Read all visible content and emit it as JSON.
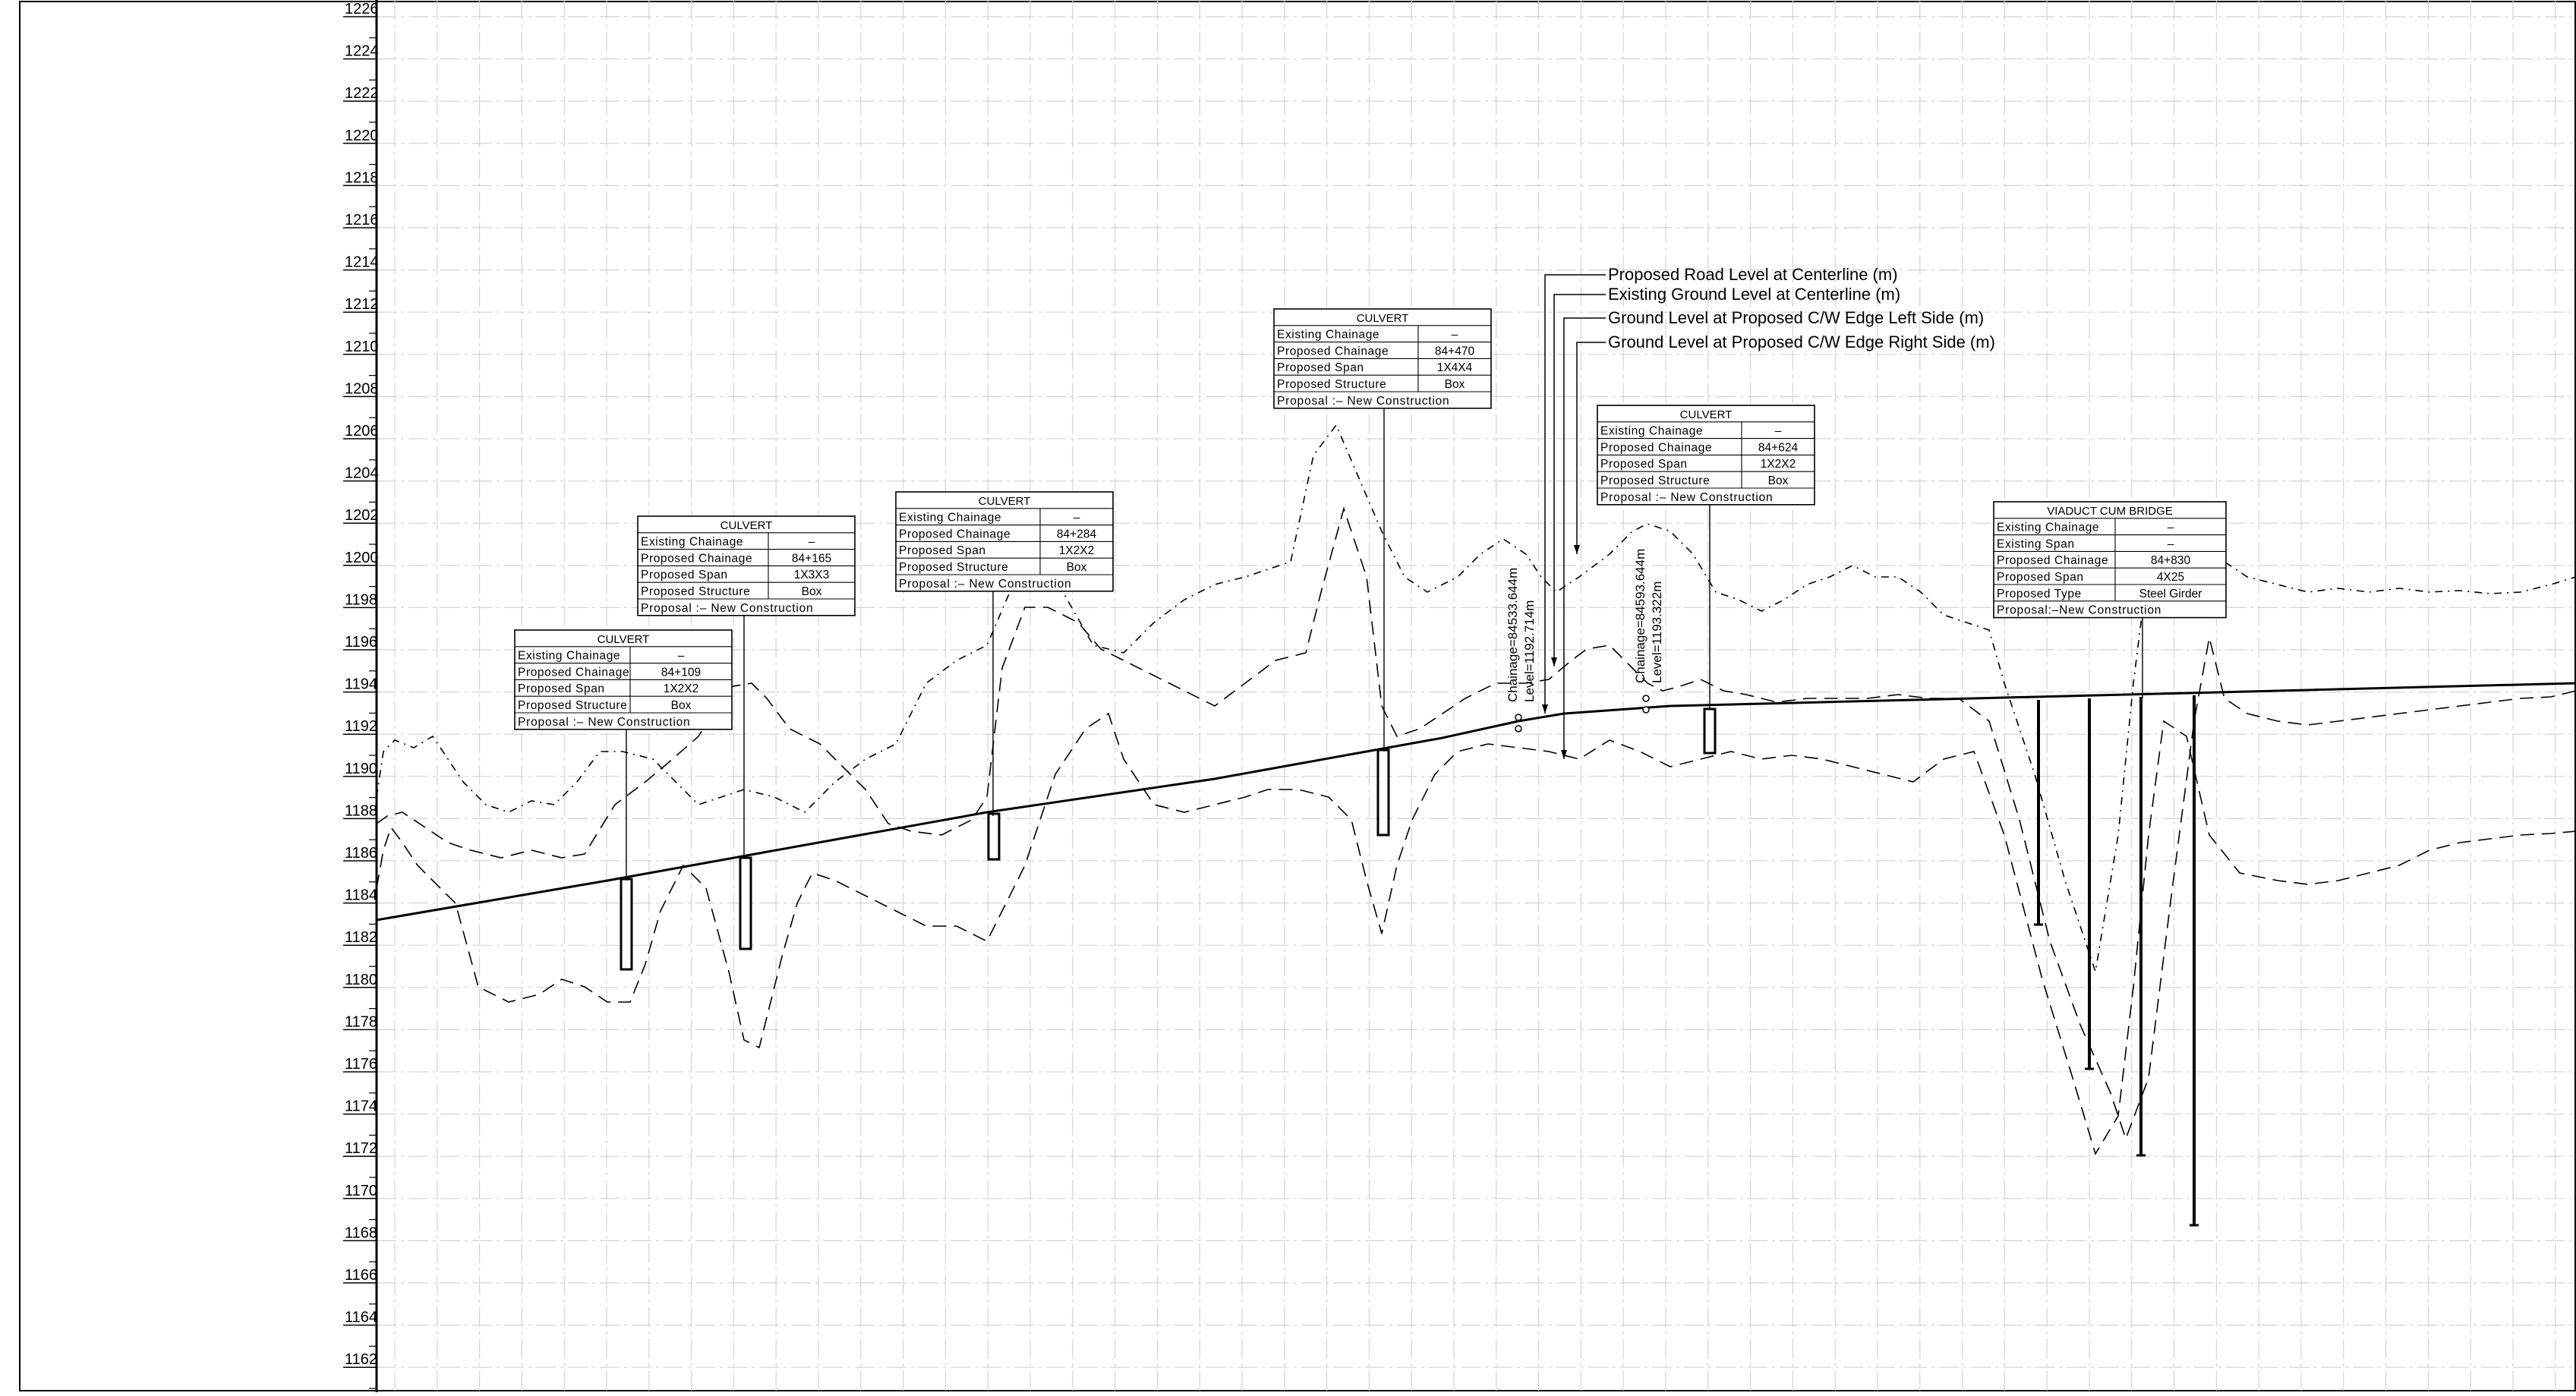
{
  "drawing": {
    "title": "",
    "y_axis_levels": [
      "1226",
      "1224",
      "1222",
      "1220",
      "1218",
      "1216",
      "1214",
      "1212",
      "1210",
      "1208",
      "1206",
      "1204",
      "1202",
      "1200",
      "1198",
      "1196",
      "1194",
      "1192",
      "1190",
      "1188",
      "1186",
      "1184",
      "1182",
      "1180",
      "1178",
      "1176",
      "1174",
      "1172",
      "1170",
      "1168",
      "1166",
      "1164",
      "1162"
    ],
    "legend": [
      "Proposed Road Level at Centerline (m)",
      "Existing Ground Level at Centerline (m)",
      "Ground Level at Proposed C/W Edge Left Side (m)",
      "Ground Level at Proposed C/W Edge Right Side (m)"
    ],
    "structures": [
      {
        "title": "CULVERT",
        "rows": [
          {
            "label": "Existing Chainage",
            "value": "–"
          },
          {
            "label": "Proposed Chainage",
            "value": "84+109"
          },
          {
            "label": "Proposed Span",
            "value": "1X2X2"
          },
          {
            "label": "Proposed Structure",
            "value": "Box"
          }
        ],
        "proposal": "Proposal :– New Construction"
      },
      {
        "title": "CULVERT",
        "rows": [
          {
            "label": "Existing Chainage",
            "value": "–"
          },
          {
            "label": "Proposed Chainage",
            "value": "84+165"
          },
          {
            "label": "Proposed Span",
            "value": "1X3X3"
          },
          {
            "label": "Proposed Structure",
            "value": "Box"
          }
        ],
        "proposal": "Proposal :– New Construction"
      },
      {
        "title": "CULVERT",
        "rows": [
          {
            "label": "Existing Chainage",
            "value": "–"
          },
          {
            "label": "Proposed Chainage",
            "value": "84+284"
          },
          {
            "label": "Proposed Span",
            "value": "1X2X2"
          },
          {
            "label": "Proposed Structure",
            "value": "Box"
          }
        ],
        "proposal": "Proposal :– New Construction"
      },
      {
        "title": "CULVERT",
        "rows": [
          {
            "label": "Existing Chainage",
            "value": "–"
          },
          {
            "label": "Proposed Chainage",
            "value": "84+470"
          },
          {
            "label": "Proposed Span",
            "value": "1X4X4"
          },
          {
            "label": "Proposed Structure",
            "value": "Box"
          }
        ],
        "proposal": "Proposal :– New Construction"
      },
      {
        "title": "CULVERT",
        "rows": [
          {
            "label": "Existing Chainage",
            "value": "–"
          },
          {
            "label": "Proposed Chainage",
            "value": "84+624"
          },
          {
            "label": "Proposed Span",
            "value": "1X2X2"
          },
          {
            "label": "Proposed Structure",
            "value": "Box"
          }
        ],
        "proposal": "Proposal :– New Construction"
      },
      {
        "title": "VIADUCT CUM BRIDGE",
        "rows": [
          {
            "label": "Existing Chainage",
            "value": "–"
          },
          {
            "label": "Existing Span",
            "value": "–"
          },
          {
            "label": "Proposed Chainage",
            "value": "84+830"
          },
          {
            "label": "Proposed Span",
            "value": "4X25"
          },
          {
            "label": "Proposed Type",
            "value": "Steel Girder"
          }
        ],
        "proposal": "Proposal:–New Construction"
      }
    ],
    "chainage_markers": [
      {
        "chainage": "Chainage=84533.644m",
        "level": "Level=1192.714m"
      },
      {
        "chainage": "Chainage=84593.644m",
        "level": "Level=1193.322m"
      }
    ]
  }
}
